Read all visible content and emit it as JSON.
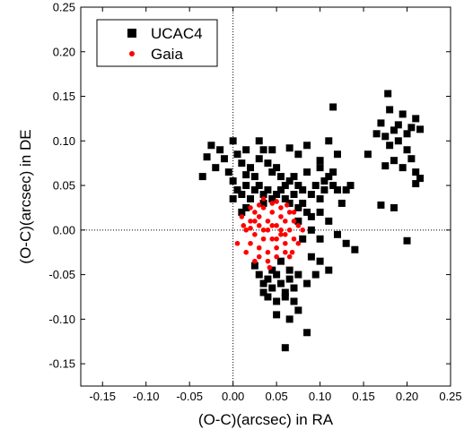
{
  "chart_data": {
    "type": "scatter",
    "xlabel": "(O-C)(arcsec) in RA",
    "ylabel": "(O-C)(arcsec) in DE",
    "xlim": [
      -0.175,
      0.25
    ],
    "ylim": [
      -0.175,
      0.25
    ],
    "x_ticks": [
      "-0.15",
      "-0.10",
      "-0.05",
      "0.00",
      "0.05",
      "0.10",
      "0.15",
      "0.20",
      "0.25"
    ],
    "y_ticks": [
      "-0.15",
      "-0.10",
      "-0.05",
      "0.00",
      "0.05",
      "0.10",
      "0.15",
      "0.20",
      "0.25"
    ],
    "reference_lines": {
      "x": 0,
      "y": 0,
      "style": "dotted"
    },
    "legend_position": "top-left",
    "series": [
      {
        "name": "UCAC4",
        "marker": "square",
        "color": "#000000",
        "points": [
          [
            -0.035,
            0.06
          ],
          [
            -0.03,
            0.082
          ],
          [
            -0.025,
            0.095
          ],
          [
            -0.02,
            0.07
          ],
          [
            -0.015,
            0.09
          ],
          [
            -0.01,
            0.08
          ],
          [
            -0.005,
            0.065
          ],
          [
            0.0,
            0.1
          ],
          [
            0.005,
            0.085
          ],
          [
            0.01,
            0.075
          ],
          [
            0.015,
            0.09
          ],
          [
            0.02,
            0.07
          ],
          [
            0.025,
            0.06
          ],
          [
            0.03,
            0.08
          ],
          [
            0.035,
            0.09
          ],
          [
            0.04,
            0.075
          ],
          [
            0.045,
            0.065
          ],
          [
            0.05,
            0.07
          ],
          [
            0.055,
            0.06
          ],
          [
            0.06,
            0.05
          ],
          [
            0.065,
            0.055
          ],
          [
            0.07,
            0.06
          ],
          [
            0.075,
            0.05
          ],
          [
            0.08,
            0.045
          ],
          [
            0.085,
            0.065
          ],
          [
            0.09,
            0.04
          ],
          [
            0.095,
            0.05
          ],
          [
            0.1,
            0.035
          ],
          [
            0.105,
            0.045
          ],
          [
            0.11,
            0.06
          ],
          [
            0.115,
            0.05
          ],
          [
            0.12,
            0.045
          ],
          [
            0.125,
            0.03
          ],
          [
            0.13,
            0.045
          ],
          [
            0.135,
            0.05
          ],
          [
            0.0,
            0.055
          ],
          [
            0.005,
            0.045
          ],
          [
            0.01,
            0.04
          ],
          [
            0.015,
            0.05
          ],
          [
            0.02,
            0.035
          ],
          [
            0.025,
            0.045
          ],
          [
            0.03,
            0.05
          ],
          [
            0.035,
            0.04
          ],
          [
            0.04,
            0.045
          ],
          [
            0.045,
            0.035
          ],
          [
            0.05,
            0.04
          ],
          [
            0.055,
            0.045
          ],
          [
            0.06,
            0.035
          ],
          [
            0.065,
            0.03
          ],
          [
            0.07,
            0.04
          ],
          [
            0.075,
            0.025
          ],
          [
            0.08,
            0.03
          ],
          [
            0.085,
            0.02
          ],
          [
            0.09,
            0.015
          ],
          [
            0.1,
            0.02
          ],
          [
            0.08,
            -0.01
          ],
          [
            0.09,
            0.0
          ],
          [
            0.1,
            -0.01
          ],
          [
            0.11,
            0.01
          ],
          [
            0.12,
            -0.005
          ],
          [
            0.13,
            -0.015
          ],
          [
            0.14,
            -0.022
          ],
          [
            0.09,
            -0.03
          ],
          [
            0.1,
            -0.035
          ],
          [
            0.095,
            -0.05
          ],
          [
            0.085,
            -0.06
          ],
          [
            0.11,
            -0.045
          ],
          [
            0.1,
            0.07
          ],
          [
            0.11,
            0.1
          ],
          [
            0.115,
            0.138
          ],
          [
            0.12,
            0.085
          ],
          [
            0.115,
            0.065
          ],
          [
            0.105,
            0.055
          ],
          [
            0.03,
            0.1
          ],
          [
            0.045,
            0.09
          ],
          [
            0.065,
            0.092
          ],
          [
            0.075,
            0.085
          ],
          [
            0.085,
            0.095
          ],
          [
            0.1,
            0.078
          ],
          [
            0.015,
            0.062
          ],
          [
            0.025,
            -0.04
          ],
          [
            0.03,
            -0.05
          ],
          [
            0.035,
            -0.06
          ],
          [
            0.04,
            -0.055
          ],
          [
            0.045,
            -0.065
          ],
          [
            0.05,
            -0.05
          ],
          [
            0.055,
            -0.06
          ],
          [
            0.06,
            -0.07
          ],
          [
            0.065,
            -0.055
          ],
          [
            0.07,
            -0.065
          ],
          [
            0.075,
            -0.05
          ],
          [
            0.04,
            -0.075
          ],
          [
            0.05,
            -0.08
          ],
          [
            0.06,
            -0.075
          ],
          [
            0.07,
            -0.08
          ],
          [
            0.035,
            -0.07
          ],
          [
            0.045,
            -0.045
          ],
          [
            0.065,
            -0.045
          ],
          [
            0.055,
            -0.035
          ],
          [
            0.06,
            -0.132
          ],
          [
            0.085,
            -0.115
          ],
          [
            0.075,
            -0.09
          ],
          [
            0.05,
            -0.095
          ],
          [
            0.065,
            -0.1
          ],
          [
            0.015,
            0.025
          ],
          [
            0.01,
            0.02
          ],
          [
            0.0,
            0.035
          ],
          [
            0.035,
            0.03
          ],
          [
            0.075,
            0.01
          ],
          [
            0.155,
            0.085
          ],
          [
            0.165,
            0.108
          ],
          [
            0.17,
            0.12
          ],
          [
            0.175,
            0.105
          ],
          [
            0.178,
            0.153
          ],
          [
            0.18,
            0.135
          ],
          [
            0.185,
            0.112
          ],
          [
            0.19,
            0.1
          ],
          [
            0.195,
            0.13
          ],
          [
            0.2,
            0.108
          ],
          [
            0.205,
            0.115
          ],
          [
            0.21,
            0.125
          ],
          [
            0.2,
            0.09
          ],
          [
            0.205,
            0.08
          ],
          [
            0.21,
            0.065
          ],
          [
            0.215,
            0.058
          ],
          [
            0.21,
            0.052
          ],
          [
            0.185,
            0.078
          ],
          [
            0.195,
            0.07
          ],
          [
            0.175,
            0.072
          ],
          [
            0.18,
            0.095
          ],
          [
            0.17,
            0.028
          ],
          [
            0.185,
            0.025
          ],
          [
            0.2,
            -0.012
          ],
          [
            0.19,
            0.118
          ],
          [
            0.215,
            0.113
          ]
        ]
      },
      {
        "name": "Gaia",
        "marker": "circle",
        "color": "#ff0000",
        "points": [
          [
            0.015,
            0.0
          ],
          [
            0.02,
            0.01
          ],
          [
            0.025,
            -0.005
          ],
          [
            0.03,
            0.015
          ],
          [
            0.035,
            0.0
          ],
          [
            0.04,
            0.01
          ],
          [
            0.045,
            -0.01
          ],
          [
            0.05,
            0.005
          ],
          [
            0.055,
            -0.005
          ],
          [
            0.06,
            0.01
          ],
          [
            0.065,
            0.0
          ],
          [
            0.07,
            -0.01
          ],
          [
            0.02,
            -0.015
          ],
          [
            0.025,
            0.02
          ],
          [
            0.03,
            -0.02
          ],
          [
            0.035,
            0.025
          ],
          [
            0.04,
            -0.025
          ],
          [
            0.045,
            0.02
          ],
          [
            0.05,
            -0.02
          ],
          [
            0.055,
            0.015
          ],
          [
            0.06,
            -0.015
          ],
          [
            0.065,
            0.02
          ],
          [
            0.07,
            0.01
          ],
          [
            0.075,
            0.005
          ],
          [
            0.03,
            0.005
          ],
          [
            0.04,
            0.0
          ],
          [
            0.05,
            -0.01
          ],
          [
            0.045,
            0.005
          ],
          [
            0.035,
            -0.01
          ],
          [
            0.025,
            0.01
          ],
          [
            0.055,
            0.0
          ],
          [
            0.06,
            -0.005
          ],
          [
            0.03,
            -0.03
          ],
          [
            0.04,
            -0.035
          ],
          [
            0.05,
            -0.03
          ],
          [
            0.06,
            -0.025
          ],
          [
            0.065,
            -0.03
          ],
          [
            0.045,
            0.03
          ],
          [
            0.03,
            0.028
          ],
          [
            0.01,
            0.015
          ],
          [
            0.005,
            -0.015
          ],
          [
            0.015,
            -0.025
          ],
          [
            0.02,
            0.025
          ],
          [
            0.055,
            0.025
          ],
          [
            0.07,
            0.02
          ],
          [
            0.075,
            -0.015
          ],
          [
            0.08,
            0.0
          ],
          [
            0.035,
            0.035
          ],
          [
            0.05,
            0.032
          ],
          [
            0.042,
            -0.042
          ],
          [
            0.025,
            -0.035
          ],
          [
            0.068,
            -0.025
          ],
          [
            0.012,
            0.005
          ],
          [
            0.02,
            0.002
          ],
          [
            0.062,
            0.028
          ]
        ]
      }
    ]
  }
}
